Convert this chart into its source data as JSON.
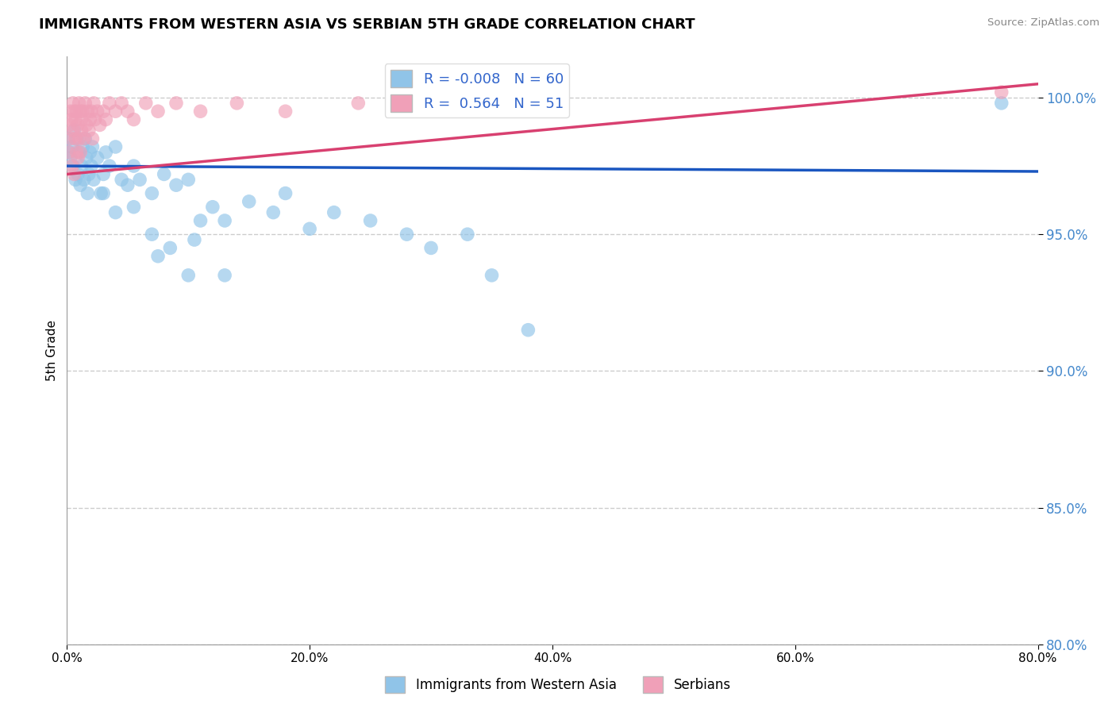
{
  "title": "IMMIGRANTS FROM WESTERN ASIA VS SERBIAN 5TH GRADE CORRELATION CHART",
  "source": "Source: ZipAtlas.com",
  "ylabel": "5th Grade",
  "xlim": [
    0.0,
    80.0
  ],
  "ylim": [
    80.0,
    101.5
  ],
  "yticks": [
    80.0,
    85.0,
    90.0,
    95.0,
    100.0
  ],
  "xticks": [
    0.0,
    20.0,
    40.0,
    60.0,
    80.0
  ],
  "blue_color": "#90C4E8",
  "pink_color": "#F0A0B8",
  "blue_line_color": "#1A56C0",
  "pink_line_color": "#D84070",
  "grid_color": "#CCCCCC",
  "R_blue": -0.008,
  "N_blue": 60,
  "R_pink": 0.564,
  "N_pink": 51,
  "legend_label_blue": "Immigrants from Western Asia",
  "legend_label_pink": "Serbians",
  "blue_trend_y_at_0": 97.5,
  "blue_trend_y_at_80": 97.3,
  "pink_trend_y_at_0": 97.2,
  "pink_trend_y_at_80": 100.5,
  "blue_scatter_x": [
    0.1,
    0.2,
    0.3,
    0.4,
    0.5,
    0.6,
    0.7,
    0.8,
    0.9,
    1.0,
    1.1,
    1.2,
    1.3,
    1.4,
    1.5,
    1.6,
    1.7,
    1.8,
    1.9,
    2.0,
    2.1,
    2.2,
    2.5,
    2.8,
    3.0,
    3.2,
    3.5,
    4.0,
    4.5,
    5.0,
    5.5,
    6.0,
    7.0,
    8.0,
    9.0,
    10.0,
    11.0,
    12.0,
    13.0,
    15.0,
    17.0,
    18.0,
    20.0,
    22.0,
    25.0,
    28.0,
    30.0,
    33.0,
    35.0,
    7.0,
    8.5,
    10.5,
    13.0,
    3.0,
    4.0,
    5.5,
    7.5,
    10.0,
    38.0,
    77.0
  ],
  "blue_scatter_y": [
    98.5,
    98.0,
    97.8,
    98.2,
    97.5,
    98.8,
    97.0,
    98.5,
    97.2,
    98.0,
    96.8,
    97.5,
    98.2,
    97.0,
    98.5,
    97.8,
    96.5,
    97.2,
    98.0,
    97.5,
    98.2,
    97.0,
    97.8,
    96.5,
    97.2,
    98.0,
    97.5,
    98.2,
    97.0,
    96.8,
    97.5,
    97.0,
    96.5,
    97.2,
    96.8,
    97.0,
    95.5,
    96.0,
    95.5,
    96.2,
    95.8,
    96.5,
    95.2,
    95.8,
    95.5,
    95.0,
    94.5,
    95.0,
    93.5,
    95.0,
    94.5,
    94.8,
    93.5,
    96.5,
    95.8,
    96.0,
    94.2,
    93.5,
    91.5,
    99.8
  ],
  "pink_scatter_x": [
    0.1,
    0.2,
    0.3,
    0.3,
    0.4,
    0.4,
    0.5,
    0.5,
    0.6,
    0.6,
    0.7,
    0.7,
    0.8,
    0.8,
    0.9,
    0.9,
    1.0,
    1.0,
    1.1,
    1.1,
    1.2,
    1.2,
    1.3,
    1.4,
    1.5,
    1.6,
    1.7,
    1.8,
    1.9,
    2.0,
    2.1,
    2.2,
    2.3,
    2.5,
    2.7,
    3.0,
    3.2,
    3.5,
    4.0,
    4.5,
    5.0,
    5.5,
    6.5,
    7.5,
    9.0,
    11.0,
    14.0,
    18.0,
    24.0,
    32.0,
    77.0
  ],
  "pink_scatter_y": [
    98.0,
    99.0,
    98.5,
    99.5,
    97.5,
    99.2,
    98.8,
    99.8,
    97.2,
    99.5,
    98.5,
    99.2,
    98.0,
    99.5,
    97.8,
    99.0,
    98.5,
    99.8,
    98.0,
    99.5,
    98.8,
    99.2,
    99.5,
    98.5,
    99.8,
    99.0,
    99.5,
    98.8,
    99.2,
    99.5,
    98.5,
    99.8,
    99.2,
    99.5,
    99.0,
    99.5,
    99.2,
    99.8,
    99.5,
    99.8,
    99.5,
    99.2,
    99.8,
    99.5,
    99.8,
    99.5,
    99.8,
    99.5,
    99.8,
    99.5,
    100.2
  ]
}
